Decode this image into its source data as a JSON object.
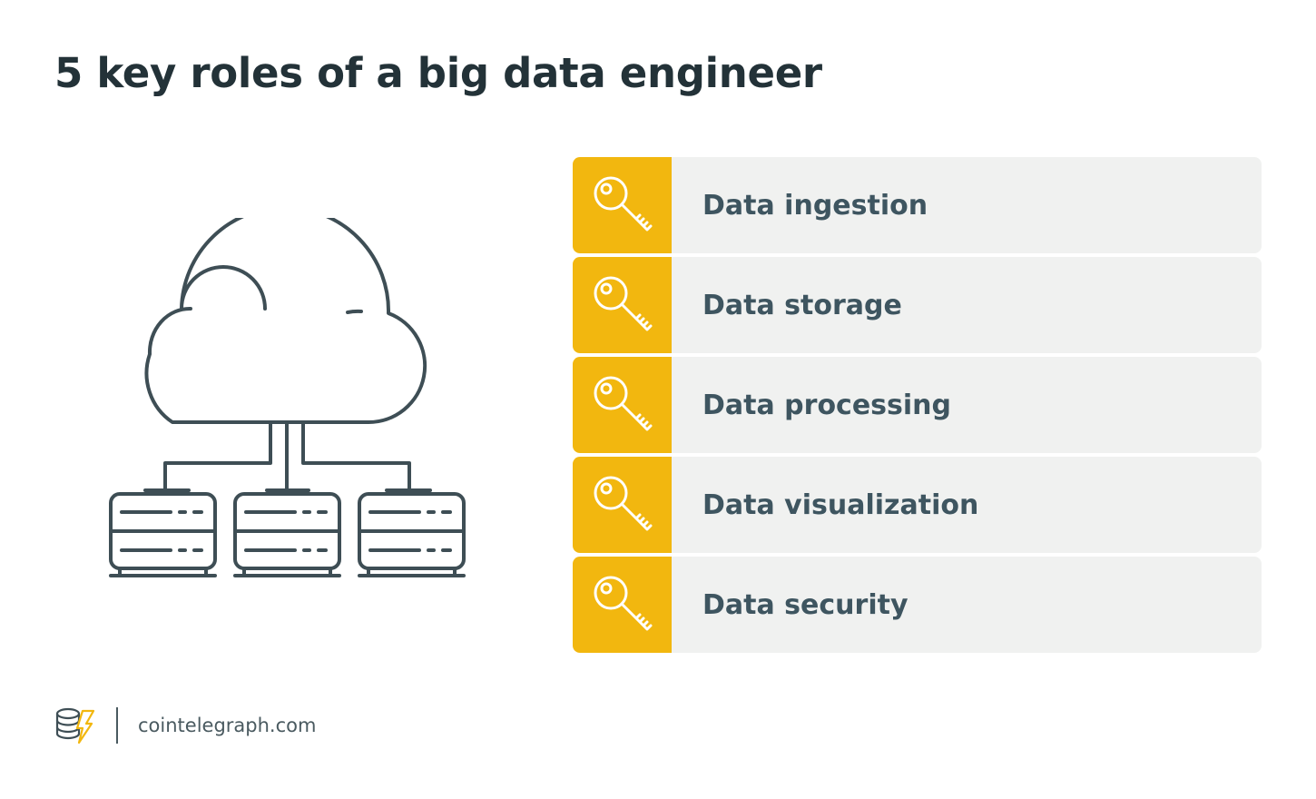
{
  "title": "5 key roles of a big data engineer",
  "illustration": {
    "cloud_icon": "cloud-icon",
    "server_icon": "server-rack-icon",
    "server_count": 3
  },
  "roles": [
    {
      "label": "Data ingestion",
      "icon": "key-icon"
    },
    {
      "label": "Data storage",
      "icon": "key-icon"
    },
    {
      "label": "Data processing",
      "icon": "key-icon"
    },
    {
      "label": "Data visualization",
      "icon": "key-icon"
    },
    {
      "label": "Data security",
      "icon": "key-icon"
    }
  ],
  "footer": {
    "logo_icon": "cointelegraph-logo-icon",
    "site": "cointelegraph.com"
  },
  "colors": {
    "accent": "#f2b70f",
    "row_background": "#f0f1f0",
    "title_text": "#233238",
    "row_text": "#3e5560",
    "line_art": "#3e4e55"
  }
}
